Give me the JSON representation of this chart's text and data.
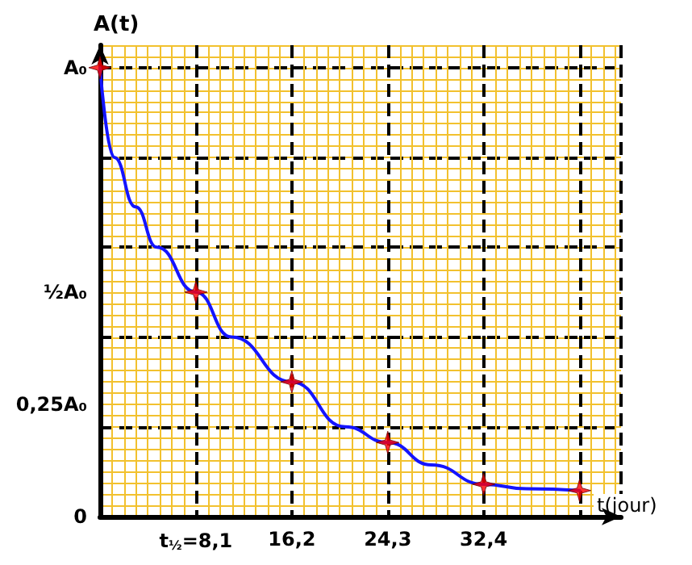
{
  "chart_data": {
    "type": "line",
    "xlabel": "t(jour)",
    "ylabel": "A(t)",
    "xlim": [
      0,
      44
    ],
    "ylim": [
      0,
      1.05
    ],
    "xticks": [
      {
        "value": 8.1,
        "label": "t$_{½}$=8,1"
      },
      {
        "value": 16.2,
        "label": "16,2"
      },
      {
        "value": 24.3,
        "label": "24,3"
      },
      {
        "value": 32.4,
        "label": "32,4"
      },
      {
        "value": 40.5,
        "label": null
      }
    ],
    "yticks": [
      {
        "value": 0,
        "label": "0"
      },
      {
        "value": 0.25,
        "label": "0,25A₀"
      },
      {
        "value": 0.5,
        "label": "½A₀"
      },
      {
        "value": 1,
        "label": "A₀"
      }
    ],
    "grid": true,
    "ref_lines": [
      {
        "axis": "y",
        "value": 0.2,
        "color": "#000000",
        "line_style": "dashed"
      },
      {
        "axis": "y",
        "value": 0.4,
        "color": "#000000",
        "line_style": "dashed"
      },
      {
        "axis": "y",
        "value": 0.6,
        "color": "#000000",
        "line_style": "dashed"
      },
      {
        "axis": "y",
        "value": 0.8,
        "color": "#000000",
        "line_style": "dashed"
      },
      {
        "axis": "y",
        "value": 1,
        "color": "#000000",
        "line_style": "dashed"
      }
    ],
    "series": [
      {
        "type": "line",
        "color": "#1414ff",
        "marker": "none",
        "line_style": "solid",
        "x": [
          0,
          1.2,
          3,
          4.8,
          8.1,
          11.1,
          16.2,
          20.7,
          24.3,
          28,
          32.4,
          36,
          40.5
        ],
        "values": [
          1,
          0.8,
          0.69,
          0.6,
          0.5,
          0.4,
          0.3,
          0.2,
          0.165,
          0.115,
          0.072,
          0.062,
          0.058
        ]
      },
      {
        "type": "scatter",
        "color": "#ff0000",
        "marker": "star",
        "x": [
          0,
          8.1,
          16.2,
          24.3,
          32.4,
          40.5
        ],
        "values": [
          1,
          0.5,
          0.3,
          0.165,
          0.072,
          0.058
        ]
      }
    ]
  }
}
